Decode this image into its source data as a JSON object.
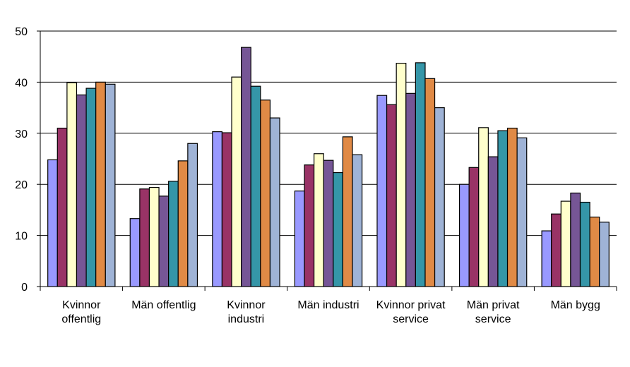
{
  "chart_data": {
    "type": "bar",
    "title": "",
    "xlabel": "",
    "ylabel": "",
    "ylim": [
      0,
      50
    ],
    "yticks": [
      "0",
      "10",
      "20",
      "30",
      "40",
      "50"
    ],
    "grid": true,
    "legend": "none",
    "categories": [
      [
        "Kvinnor",
        "offentlig"
      ],
      [
        "Män offentlig"
      ],
      [
        "Kvinnor",
        "industri"
      ],
      [
        "Män industri"
      ],
      [
        "Kvinnor privat",
        "service"
      ],
      [
        "Män privat",
        "service"
      ],
      [
        "Män bygg"
      ]
    ],
    "series": [
      {
        "color": "#9999ff",
        "values": [
          24.8,
          13.3,
          30.3,
          18.7,
          37.4,
          20.0,
          10.9
        ]
      },
      {
        "color": "#993366",
        "values": [
          31.0,
          19.1,
          30.1,
          23.8,
          35.6,
          23.3,
          14.2
        ]
      },
      {
        "color": "#ffffcc",
        "values": [
          39.9,
          19.4,
          41.0,
          26.0,
          43.7,
          31.1,
          16.7
        ]
      },
      {
        "color": "#765696",
        "values": [
          37.5,
          17.7,
          46.8,
          24.7,
          37.8,
          25.4,
          18.3
        ]
      },
      {
        "color": "#3596a8",
        "values": [
          38.8,
          20.6,
          39.2,
          22.3,
          43.8,
          30.5,
          16.5
        ]
      },
      {
        "color": "#e08a46",
        "values": [
          40.0,
          24.6,
          36.5,
          29.3,
          40.7,
          31.0,
          13.6
        ]
      },
      {
        "color": "#9fb3d6",
        "values": [
          39.6,
          28.0,
          33.0,
          25.8,
          35.0,
          29.1,
          12.6
        ]
      }
    ]
  }
}
